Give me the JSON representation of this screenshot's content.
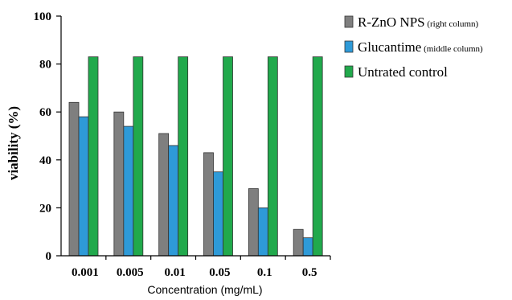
{
  "chart_data": {
    "type": "bar",
    "xlabel": "Concentration (mg/mL)",
    "ylabel": "viability (%)",
    "ylim": [
      0,
      100
    ],
    "yticks": [
      0,
      20,
      40,
      60,
      80,
      100
    ],
    "categories": [
      "0.001",
      "0.005",
      "0.01",
      "0.05",
      "0.1",
      "0.5"
    ],
    "grid": false,
    "legend_position": "right",
    "series": [
      {
        "name": "R-ZnO NPS",
        "note": "(right column)",
        "color": "#7f7f7f",
        "values": [
          64,
          60,
          51,
          43,
          28,
          11
        ]
      },
      {
        "name": "Glucantime",
        "note": "(middle column)",
        "color": "#2e9ad8",
        "values": [
          58,
          54,
          46,
          35,
          20,
          7.5
        ]
      },
      {
        "name": "Untrated control",
        "note": "",
        "color": "#21a94c",
        "values": [
          83,
          83,
          83,
          83,
          83,
          83
        ]
      }
    ]
  }
}
